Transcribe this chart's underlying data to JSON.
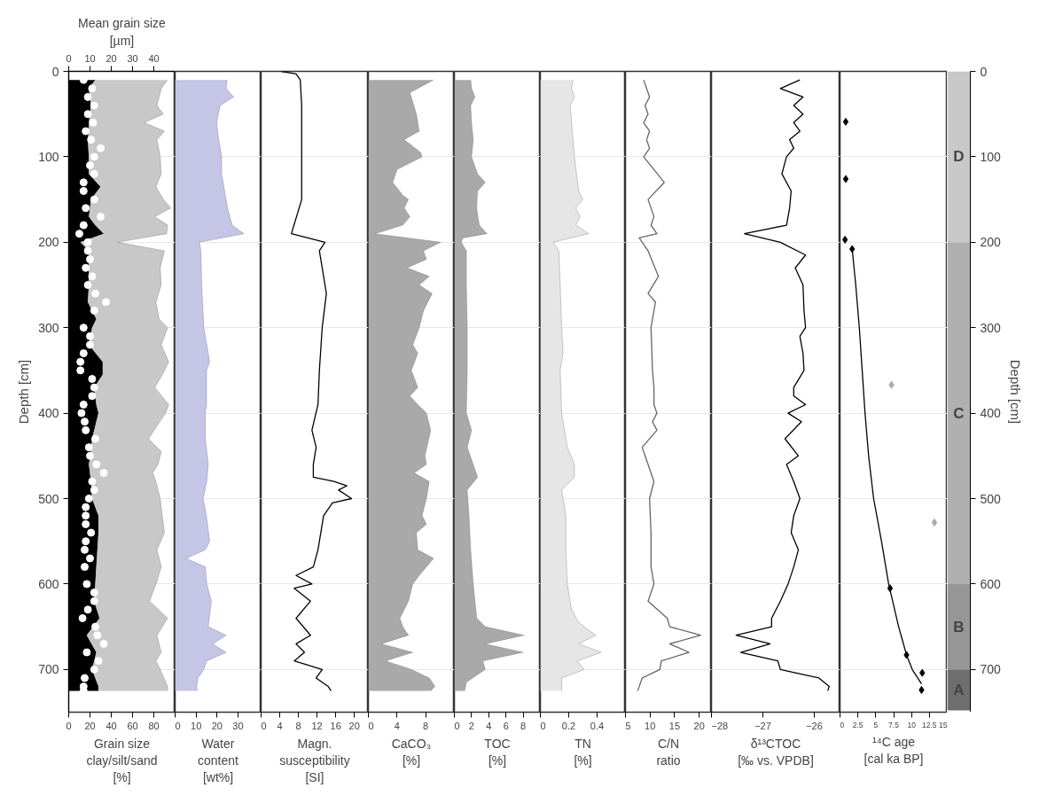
{
  "chart_data": [
    {
      "type": "area",
      "orientation": "horizontal",
      "stacked": true,
      "xlabel": "Grain size\nclay/silt/sand\n[%]",
      "ylabel": "Depth [cm]",
      "x2label": "Mean grain size\n[µm]",
      "xlim": [
        0,
        100
      ],
      "xticks": [
        0,
        20,
        40,
        60,
        80
      ],
      "x2lim": [
        0,
        50
      ],
      "x2ticks": [
        0,
        10,
        20,
        30,
        40
      ],
      "ylim": [
        750,
        0
      ],
      "yticks": [
        0,
        100,
        200,
        300,
        400,
        500,
        600,
        700
      ],
      "grid": "y",
      "x": [
        10,
        20,
        40,
        50,
        60,
        70,
        80,
        100,
        120,
        135,
        150,
        160,
        170,
        180,
        190,
        200,
        210,
        230,
        250,
        270,
        290,
        300,
        320,
        340,
        355,
        370,
        390,
        400,
        430,
        445,
        460,
        470,
        480,
        500,
        520,
        540,
        560,
        580,
        600,
        620,
        640,
        660,
        680,
        690,
        700,
        720,
        725
      ],
      "series": [
        {
          "color": "#000000",
          "values": [
            25,
            19,
            21,
            20,
            19,
            19,
            18,
            19,
            19,
            30,
            21,
            20,
            19,
            25,
            33,
            11,
            19,
            19,
            19,
            18,
            26,
            22,
            19,
            32,
            32,
            24,
            26,
            28,
            22,
            21,
            19,
            20,
            21,
            22,
            28,
            28,
            27,
            26,
            25,
            24,
            29,
            17,
            26,
            24,
            22,
            28,
            28
          ]
        },
        {
          "color": "#c8c8c8",
          "values": [
            68,
            68,
            62,
            69,
            52,
            71,
            65,
            67,
            68,
            52,
            68,
            76,
            62,
            68,
            59,
            35,
            71,
            67,
            68,
            64,
            59,
            71,
            68,
            62,
            56,
            57,
            68,
            63,
            53,
            66,
            65,
            59,
            61,
            64,
            60,
            62,
            56,
            61,
            57,
            52,
            64,
            66,
            61,
            58,
            64,
            65,
            65
          ]
        },
        {
          "type": "scatter",
          "axis": "x2",
          "marker": "circle",
          "color": "#ffffff",
          "x": [
            10,
            20,
            30,
            40,
            50,
            60,
            70,
            80,
            90,
            100,
            110,
            120,
            130,
            140,
            150,
            160,
            170,
            180,
            190,
            200,
            210,
            220,
            230,
            240,
            250,
            260,
            270,
            280,
            300,
            310,
            320,
            330,
            340,
            350,
            360,
            370,
            380,
            390,
            400,
            410,
            420,
            430,
            440,
            450,
            460,
            470,
            480,
            490,
            500,
            510,
            520,
            530,
            540,
            550,
            560,
            570,
            580,
            600,
            610,
            620,
            630,
            640,
            650,
            660,
            670,
            680,
            690,
            700,
            710,
            720,
            725
          ],
          "values": [
            7,
            11,
            9,
            12,
            9,
            11.5,
            8,
            10.5,
            15,
            12,
            10,
            12,
            7,
            7,
            12,
            8,
            15,
            7,
            5,
            9,
            9,
            10,
            8,
            11,
            9,
            12.5,
            17.5,
            12,
            7,
            10,
            10,
            7,
            5.5,
            5.5,
            11,
            12,
            11,
            7,
            6,
            7.5,
            8,
            12.5,
            9.5,
            10,
            13,
            16.5,
            11,
            12,
            9.5,
            8,
            8,
            8,
            10.5,
            8,
            7.5,
            10,
            7.5,
            8.5,
            12,
            12,
            9,
            6.5,
            12.5,
            13.5,
            16.5,
            8.5,
            14,
            12,
            7.5,
            7,
            7
          ]
        }
      ]
    },
    {
      "type": "area",
      "orientation": "horizontal",
      "xlabel": "Water\ncontent\n[wt%]",
      "xlim": [
        0,
        41
      ],
      "xticks": [
        0,
        10,
        20,
        30
      ],
      "ylim": [
        750,
        0
      ],
      "yticks": [
        0,
        100,
        200,
        300,
        400,
        500,
        600,
        700
      ],
      "tick_labels": "x",
      "grid": "y",
      "x": [
        10,
        20,
        30,
        40,
        60,
        80,
        100,
        120,
        160,
        180,
        190,
        200,
        210,
        250,
        300,
        340,
        350,
        390,
        400,
        430,
        460,
        480,
        500,
        520,
        550,
        560,
        570,
        580,
        600,
        620,
        650,
        660,
        670,
        680,
        690,
        700,
        710,
        720,
        725
      ],
      "series": [
        {
          "color": "#c5c5e5",
          "values": [
            24.8,
            24.3,
            27.9,
            21.5,
            19.8,
            20.8,
            22.2,
            22.2,
            25,
            27.2,
            32.8,
            11.6,
            12.3,
            12.7,
            13.7,
            16.5,
            15,
            15,
            14.4,
            14.4,
            15.8,
            15.1,
            13.4,
            14.9,
            16.5,
            14.4,
            5.2,
            14.4,
            15.1,
            17.3,
            15.8,
            24.3,
            18,
            24.3,
            15.1,
            13.7,
            10.9,
            10.2,
            10.6
          ]
        }
      ]
    },
    {
      "type": "line",
      "orientation": "horizontal",
      "xlabel": "Magn.\nsusceptibility\n[SI]",
      "xlim": [
        0,
        23
      ],
      "xticks": [
        0,
        4,
        8,
        12,
        16,
        20
      ],
      "ylim": [
        750,
        0
      ],
      "yticks": [
        0,
        100,
        200,
        300,
        400,
        500,
        600,
        700
      ],
      "tick_labels": "x",
      "grid": "y",
      "x": [
        0,
        3,
        10,
        40,
        100,
        150,
        190,
        200,
        210,
        260,
        300,
        350,
        390,
        420,
        440,
        460,
        475,
        480,
        485,
        490,
        500,
        505,
        520,
        540,
        560,
        580,
        590,
        600,
        605,
        620,
        640,
        660,
        670,
        680,
        690,
        700,
        710,
        720,
        725
      ],
      "series": [
        {
          "color": "#000000",
          "values": [
            4.3,
            7.5,
            8.4,
            8.7,
            8.7,
            8.7,
            6.5,
            13.7,
            12.5,
            14,
            13.1,
            12.5,
            12.2,
            10.9,
            11.8,
            11.2,
            11.2,
            15.6,
            18.4,
            16.6,
            19.4,
            15.3,
            13.4,
            12.8,
            12.2,
            11.2,
            7.5,
            10.9,
            7.1,
            10.6,
            7.5,
            10.6,
            7.5,
            9.3,
            7.1,
            13.1,
            11.8,
            14.4,
            15
          ]
        }
      ]
    },
    {
      "type": "area",
      "orientation": "horizontal",
      "xlabel": "CaCO₃\n[%]",
      "xlim": [
        0,
        12
      ],
      "xticks": [
        0,
        4,
        8
      ],
      "ylim": [
        750,
        0
      ],
      "yticks": [
        0,
        100,
        200,
        300,
        400,
        500,
        600,
        700
      ],
      "tick_labels": "x",
      "grid": "y",
      "x": [
        10,
        25,
        50,
        70,
        80,
        95,
        100,
        115,
        130,
        145,
        150,
        160,
        170,
        180,
        190,
        200,
        210,
        220,
        230,
        240,
        250,
        260,
        280,
        300,
        320,
        330,
        350,
        370,
        380,
        390,
        400,
        420,
        450,
        460,
        470,
        480,
        500,
        520,
        530,
        540,
        560,
        570,
        590,
        600,
        620,
        640,
        650,
        660,
        670,
        680,
        690,
        700,
        710,
        720,
        725
      ],
      "series": [
        {
          "color": "#a9a9a9",
          "values": [
            9.1,
            5.8,
            6.7,
            7.1,
            5,
            7.3,
            7.5,
            4,
            3.4,
            4.8,
            5.6,
            5,
            5.8,
            4.8,
            0.9,
            10.1,
            7.7,
            8.1,
            5.4,
            8.5,
            7.1,
            8.9,
            7.7,
            7.1,
            6.2,
            6.9,
            6,
            6.9,
            5.8,
            6.9,
            8.1,
            8.7,
            7.9,
            8.1,
            6.4,
            8.5,
            8.1,
            7.5,
            8.1,
            6.7,
            6.9,
            9.1,
            7.1,
            6.2,
            5.6,
            4.4,
            4.8,
            5.6,
            1.8,
            6.2,
            2.4,
            6,
            8.5,
            9.3,
            8.7
          ]
        }
      ]
    },
    {
      "type": "area",
      "orientation": "horizontal",
      "xlabel": "TOC\n[%]",
      "xlim": [
        0,
        10
      ],
      "xticks": [
        0,
        2,
        4,
        6,
        8
      ],
      "ylim": [
        750,
        0
      ],
      "yticks": [
        0,
        100,
        200,
        300,
        400,
        500,
        600,
        700
      ],
      "tick_labels": "x",
      "grid": "y",
      "x": [
        10,
        20,
        30,
        40,
        60,
        80,
        100,
        120,
        130,
        140,
        160,
        180,
        190,
        195,
        200,
        210,
        250,
        300,
        350,
        400,
        420,
        440,
        460,
        475,
        490,
        520,
        560,
        600,
        620,
        640,
        650,
        660,
        670,
        680,
        690,
        700,
        715,
        725
      ],
      "series": [
        {
          "color": "#a9a9a9",
          "values": [
            1.9,
            2,
            2.4,
            1.9,
            2,
            2.2,
            2,
            2.7,
            3.6,
            2.7,
            2.6,
            2.9,
            3.8,
            1,
            0.8,
            1.4,
            1.4,
            1.5,
            1.5,
            1.4,
            2,
            1.5,
            2.2,
            2.7,
            1.5,
            1.7,
            1.9,
            2.2,
            2.4,
            2.6,
            3.6,
            8.1,
            3.6,
            8,
            3.3,
            3.6,
            1.4,
            1.2
          ]
        }
      ]
    },
    {
      "type": "area",
      "orientation": "horizontal",
      "xlabel": "TN\n[%]",
      "xlim": [
        0,
        0.6
      ],
      "xticks": [
        0,
        0.2,
        0.4
      ],
      "ylim": [
        750,
        0
      ],
      "yticks": [
        0,
        100,
        200,
        300,
        400,
        500,
        600,
        700
      ],
      "tick_labels": "x",
      "grid": "y",
      "x": [
        10,
        20,
        30,
        40,
        100,
        140,
        150,
        160,
        170,
        180,
        190,
        200,
        210,
        250,
        300,
        330,
        350,
        400,
        440,
        460,
        475,
        490,
        520,
        560,
        600,
        630,
        645,
        660,
        670,
        680,
        690,
        700,
        710,
        725
      ],
      "series": [
        {
          "color": "#e6e6e6",
          "values": [
            0.23,
            0.22,
            0.24,
            0.21,
            0.24,
            0.27,
            0.3,
            0.25,
            0.28,
            0.25,
            0.34,
            0.09,
            0.13,
            0.14,
            0.15,
            0.16,
            0.14,
            0.15,
            0.19,
            0.24,
            0.24,
            0.15,
            0.18,
            0.18,
            0.19,
            0.22,
            0.27,
            0.39,
            0.27,
            0.43,
            0.26,
            0.31,
            0.15,
            0.15
          ]
        }
      ]
    },
    {
      "type": "line",
      "orientation": "horizontal",
      "xlabel": "C/N\nratio",
      "xlim": [
        5,
        22.5
      ],
      "xticks": [
        5,
        10,
        15,
        20
      ],
      "ylim": [
        750,
        0
      ],
      "yticks": [
        0,
        100,
        200,
        300,
        400,
        500,
        600,
        700
      ],
      "tick_labels": "x",
      "grid": "y",
      "x": [
        10,
        20,
        30,
        40,
        50,
        60,
        70,
        80,
        90,
        100,
        130,
        150,
        170,
        180,
        190,
        195,
        210,
        240,
        260,
        270,
        300,
        350,
        370,
        390,
        400,
        410,
        420,
        440,
        460,
        480,
        500,
        540,
        580,
        600,
        620,
        640,
        650,
        660,
        670,
        680,
        690,
        700,
        710,
        725
      ],
      "series": [
        {
          "color": "#666666",
          "values": [
            8.7,
            9.3,
            9.9,
            9,
            9.6,
            8.7,
            9.9,
            9.3,
            9.9,
            8.7,
            12.9,
            9.6,
            10.8,
            10.2,
            11.4,
            7.8,
            9.6,
            11.7,
            9.6,
            11.1,
            10.2,
            10.5,
            10.8,
            10.8,
            11.4,
            10.5,
            11.4,
            8.4,
            9.6,
            10.8,
            9.9,
            10.2,
            10.2,
            10.8,
            9.6,
            13.5,
            14,
            20.3,
            14,
            17.9,
            12.3,
            12,
            8.4,
            7.5
          ]
        }
      ]
    },
    {
      "type": "line",
      "orientation": "horizontal",
      "xlabel": "δ¹³CTOC\n[‰ vs. VPDB]",
      "xlim": [
        -28,
        -25.5
      ],
      "xticks": [
        -28,
        -27,
        -26
      ],
      "ylim": [
        750,
        0
      ],
      "yticks": [
        0,
        100,
        200,
        300,
        400,
        500,
        600,
        700
      ],
      "tick_labels": "x",
      "grid": "y",
      "x": [
        10,
        20,
        30,
        40,
        50,
        60,
        70,
        80,
        90,
        100,
        120,
        140,
        160,
        180,
        190,
        200,
        215,
        230,
        250,
        280,
        300,
        310,
        330,
        350,
        370,
        380,
        390,
        400,
        410,
        430,
        450,
        460,
        480,
        500,
        520,
        540,
        560,
        580,
        600,
        620,
        640,
        650,
        660,
        670,
        680,
        690,
        700,
        710,
        720,
        725
      ],
      "series": [
        {
          "color": "#000000",
          "values": [
            -26.28,
            -26.66,
            -26.22,
            -26.4,
            -26.22,
            -26.4,
            -26.28,
            -26.48,
            -26.4,
            -26.54,
            -26.63,
            -26.45,
            -26.48,
            -26.54,
            -27.36,
            -26.66,
            -26.17,
            -26.37,
            -26.22,
            -26.2,
            -26.17,
            -26.28,
            -26.22,
            -26.2,
            -26.4,
            -26.4,
            -26.17,
            -26.51,
            -26.25,
            -26.57,
            -26.31,
            -26.54,
            -26.4,
            -26.28,
            -26.4,
            -26.45,
            -26.31,
            -26.4,
            -26.51,
            -26.66,
            -26.83,
            -26.83,
            -27.52,
            -26.86,
            -27.43,
            -26.71,
            -26.66,
            -25.91,
            -25.71,
            -25.74
          ]
        }
      ]
    },
    {
      "type": "scatter",
      "orientation": "horizontal",
      "xlabel": "¹⁴C age\n[cal ka BP]",
      "xlim": [
        0,
        15
      ],
      "xticks": [
        0,
        {
          "value": 2.5,
          "label": "2.5"
        },
        5,
        {
          "value": 7.5,
          "label": "7.5"
        },
        10,
        {
          "value": 12.5,
          "label": "12.5"
        },
        15
      ],
      "ylim": [
        750,
        0
      ],
      "yticks": [
        0,
        100,
        200,
        300,
        400,
        500,
        600,
        700
      ],
      "tick_labels": "x",
      "grid": "y",
      "series": [
        {
          "type": "line",
          "color": "#000000",
          "x": [
            208,
            250,
            300,
            350,
            400,
            450,
            500,
            550,
            600,
            650,
            683,
            700,
            717
          ],
          "values": [
            1.7,
            2.2,
            2.7,
            3.1,
            3.5,
            4.0,
            4.7,
            5.8,
            6.8,
            8.2,
            9.3,
            10.1,
            11.4
          ]
        },
        {
          "marker": "diamond",
          "color": "#000000",
          "x": [
            59,
            126,
            197,
            208,
            605,
            683,
            704,
            724
          ],
          "values": [
            0.8,
            0.8,
            0.7,
            1.7,
            7.0,
            9.3,
            11.5,
            11.4
          ]
        },
        {
          "marker": "diamond",
          "color": "#aaaaaa",
          "x": [
            367,
            528
          ],
          "values": [
            7.2,
            13.2
          ]
        }
      ]
    },
    {
      "type": "bar",
      "stacked": true,
      "ylabel": "Depth [cm]",
      "ylim": [
        750,
        0
      ],
      "yticks": [
        0,
        100,
        200,
        300,
        400,
        500,
        600,
        700
      ],
      "tick_labels": "y",
      "categories": [
        null
      ],
      "series": [
        {
          "name": "D",
          "color": "#c8c8c8",
          "values": [
            200
          ]
        },
        {
          "name": "C",
          "color": "#b0b0b0",
          "values": [
            400
          ]
        },
        {
          "name": "B",
          "color": "#969696",
          "values": [
            100
          ]
        },
        {
          "name": "A",
          "color": "#6e6e6e",
          "values": [
            48
          ]
        }
      ]
    }
  ]
}
